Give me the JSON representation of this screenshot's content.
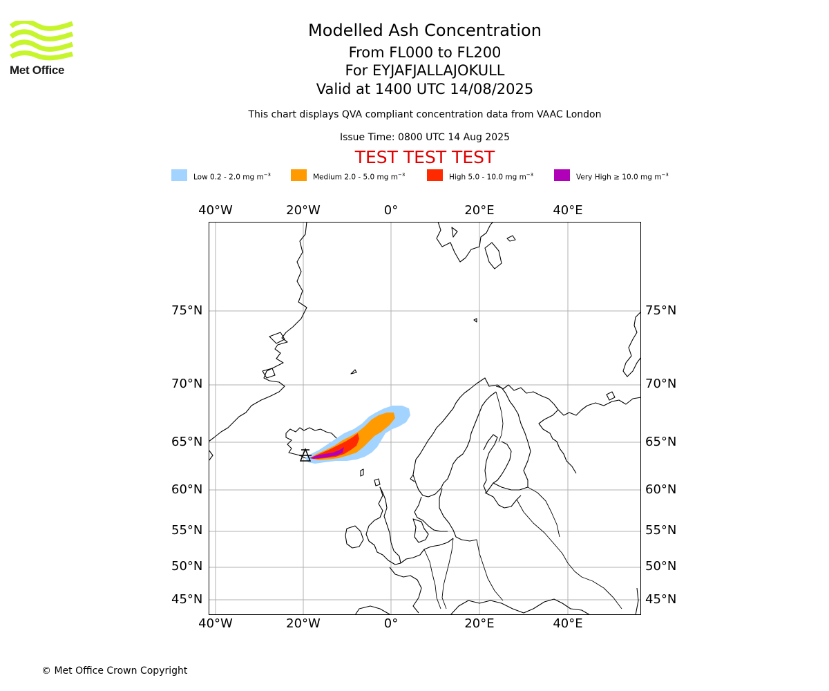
{
  "logo": {
    "text": "Met Office",
    "color": "#c6f52c"
  },
  "title": {
    "line1": "Modelled Ash Concentration",
    "line2": "From FL000 to FL200",
    "line3": "For EYJAFJALLAJOKULL",
    "line4": "Valid at 1400 UTC 14/08/2025"
  },
  "subtitle": "This chart displays QVA compliant concentration data from VAAC London",
  "issue_time": "Issue Time: 0800 UTC 14 Aug 2025",
  "test_banner": {
    "text": "TEST TEST TEST",
    "color": "#e00000"
  },
  "legend": [
    {
      "label": "Low 0.2 - 2.0 mg m",
      "unit_exp": "−3",
      "color": "#a3d4ff"
    },
    {
      "label": "Medium 2.0 - 5.0 mg m",
      "unit_exp": "−3",
      "color": "#ff9a00"
    },
    {
      "label": "High 5.0 - 10.0 mg m",
      "unit_exp": "−3",
      "color": "#ff2a00"
    },
    {
      "label": "Very High ≥ 10.0 mg m",
      "unit_exp": "−3",
      "color": "#b000b8"
    }
  ],
  "axes": {
    "lon_top": [
      "40°W",
      "20°W",
      "0°",
      "20°E",
      "40°E"
    ],
    "lon_bottom": [
      "40°W",
      "20°W",
      "0°",
      "20°E",
      "40°E"
    ],
    "lat_left": [
      "75°N",
      "70°N",
      "65°N",
      "60°N",
      "55°N",
      "50°N",
      "45°N"
    ],
    "lat_right": [
      "75°N",
      "70°N",
      "65°N",
      "60°N",
      "55°N",
      "50°N",
      "45°N"
    ]
  },
  "volcano": {
    "name": "EYJAFJALLAJOKULL",
    "icon": "volcano-triangle-icon"
  },
  "copyright": "© Met Office Crown Copyright"
}
